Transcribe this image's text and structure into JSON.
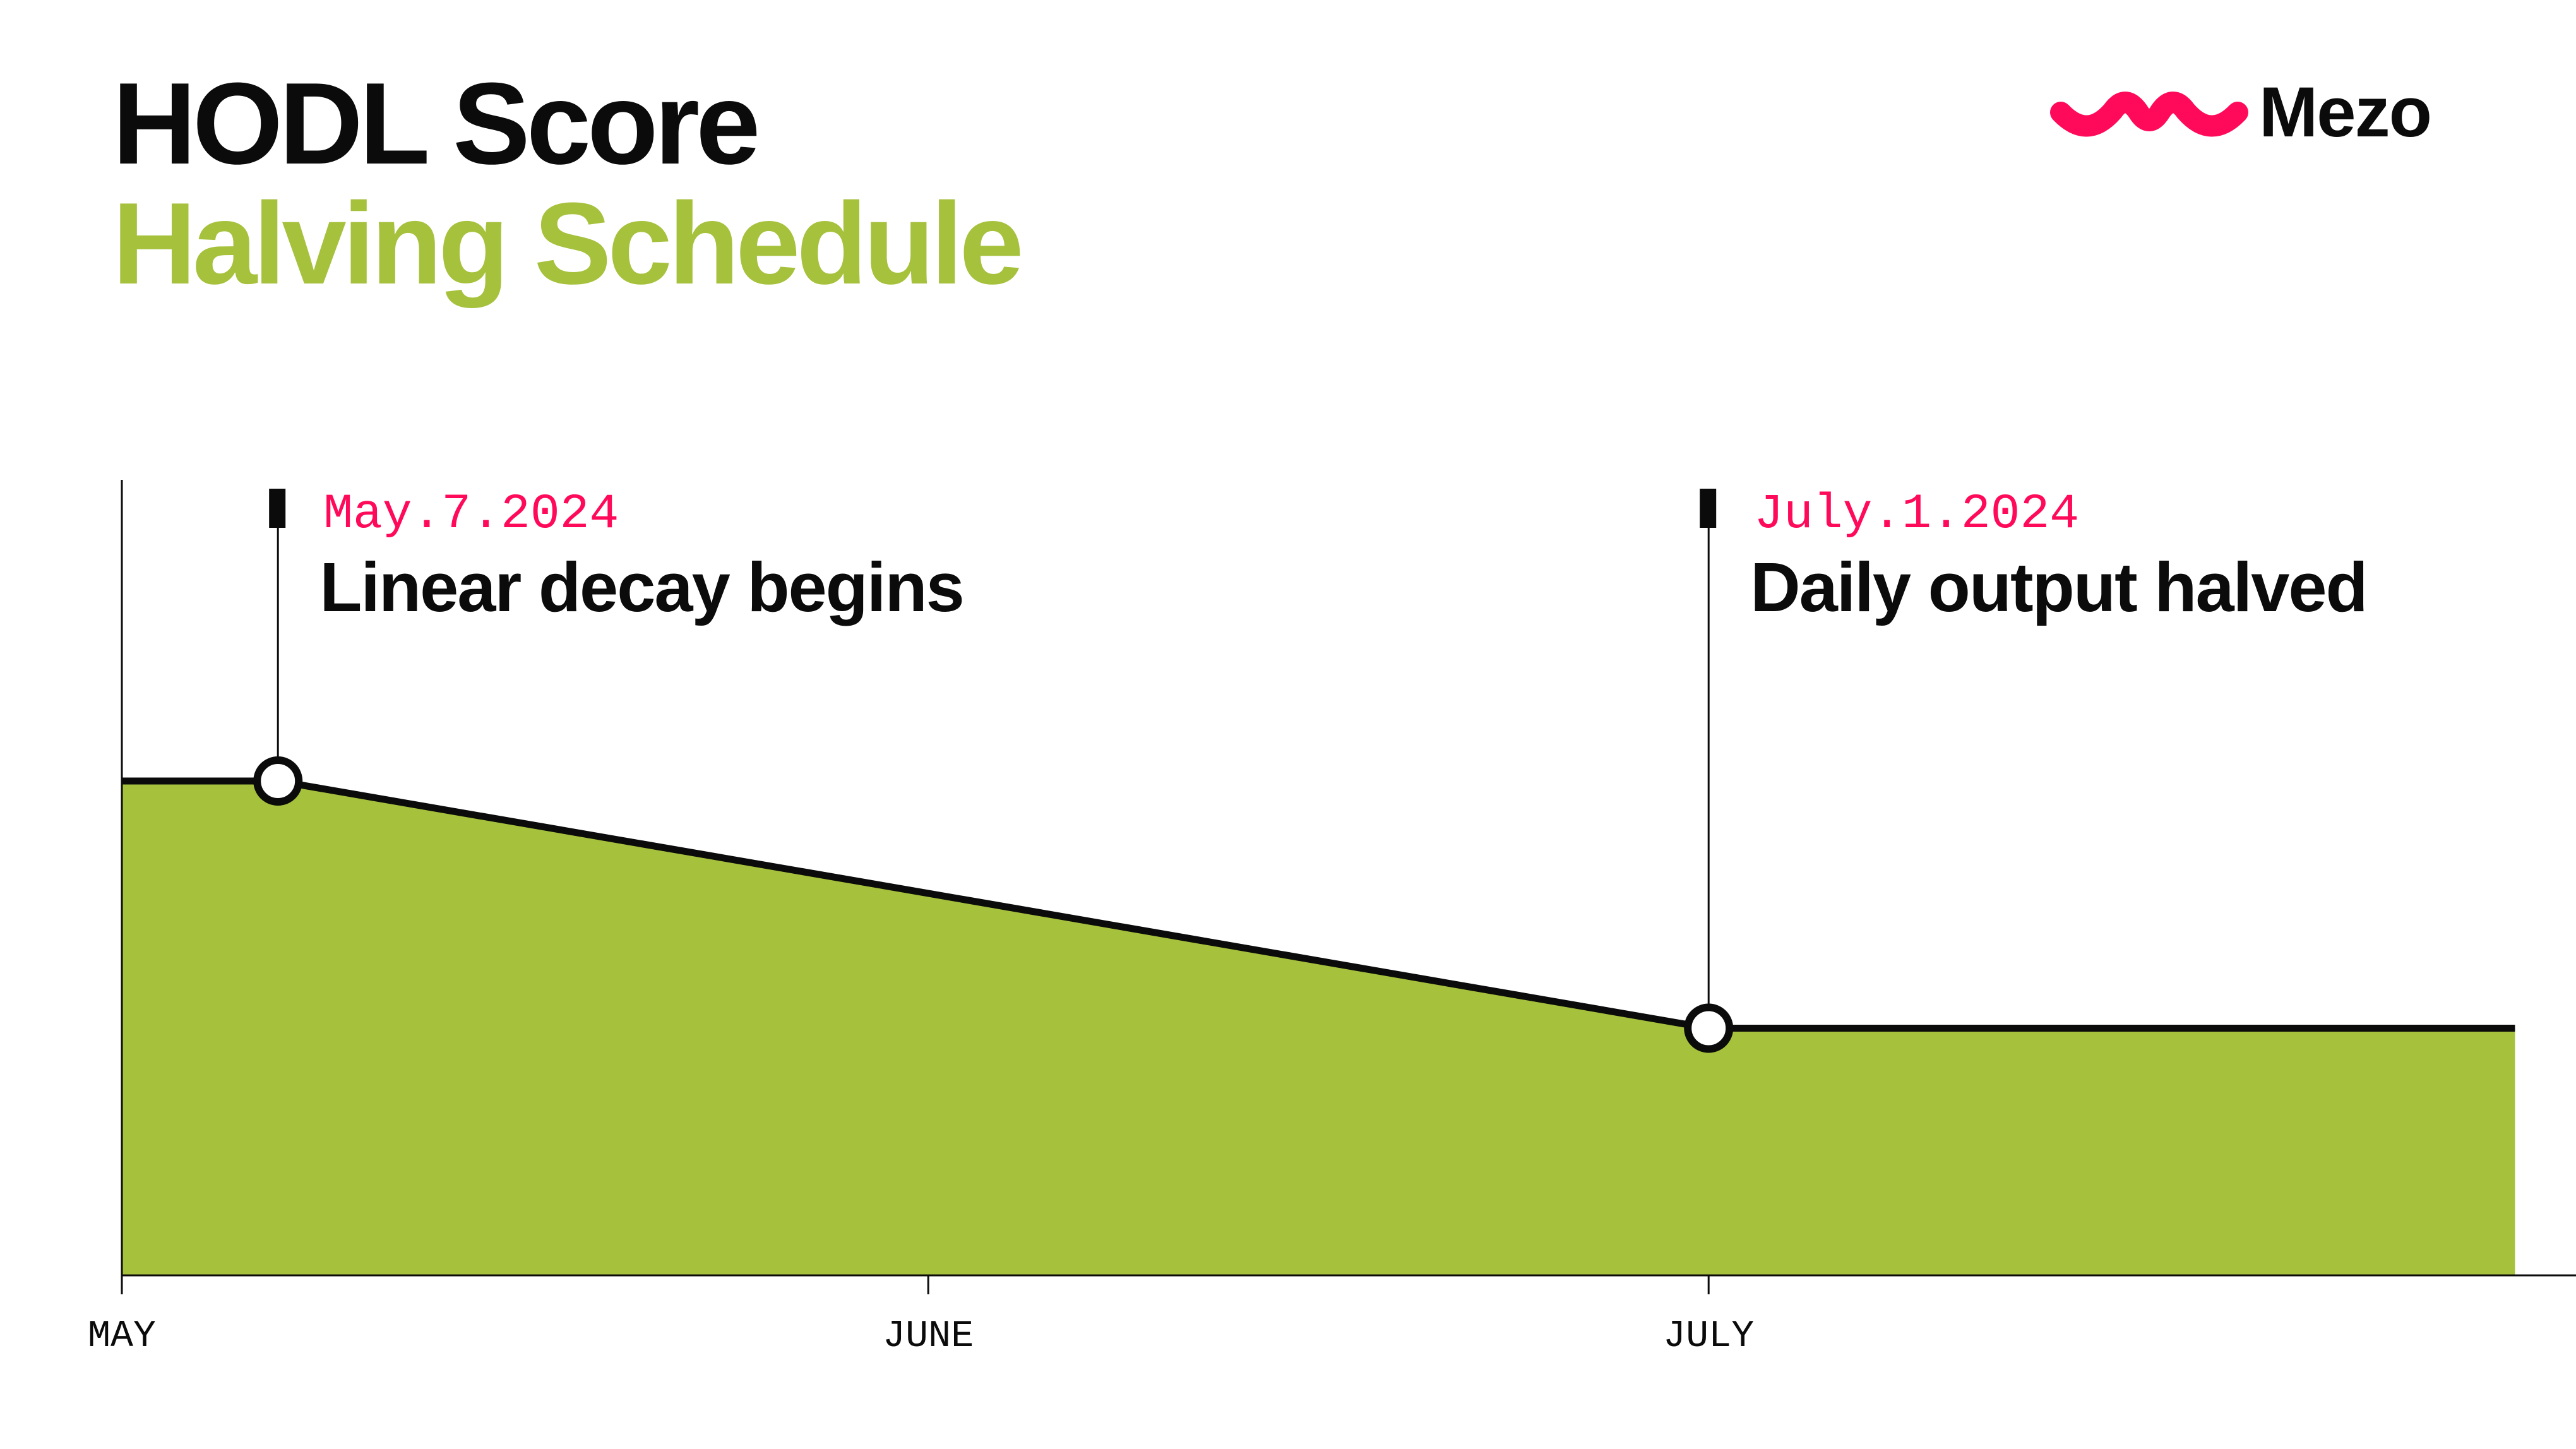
{
  "header": {
    "title": "HODL Score",
    "subtitle": "Halving Schedule"
  },
  "brand": {
    "name": "Mezo",
    "logo_icon": "mezo-wave-icon",
    "color": "#ff0a5a"
  },
  "colors": {
    "area_fill": "#a6c13c",
    "line": "#0b0b0b",
    "annotation_date": "#ff0a5a",
    "subtitle": "#a6c13c"
  },
  "chart_data": {
    "type": "area",
    "title": "",
    "xlabel": "",
    "ylabel": "",
    "x_ticks": [
      "MAY",
      "JUNE",
      "JULY"
    ],
    "xlim": [
      "2024-05-01",
      "2024-08-01"
    ],
    "ylim": [
      0,
      1
    ],
    "grid": false,
    "legend": "none",
    "series": [
      {
        "points": [
          {
            "x": "2024-05-01",
            "y": 1.0
          },
          {
            "x": "2024-05-07",
            "y": 1.0
          },
          {
            "x": "2024-07-01",
            "y": 0.5
          },
          {
            "x": "2024-08-01",
            "y": 0.5
          }
        ]
      }
    ],
    "annotations": [
      {
        "x": "2024-05-07",
        "y": 1.0,
        "date_label": "May.7.2024",
        "text": "Linear decay begins"
      },
      {
        "x": "2024-07-01",
        "y": 0.5,
        "date_label": "July.1.2024",
        "text": "Daily output halved"
      }
    ]
  }
}
